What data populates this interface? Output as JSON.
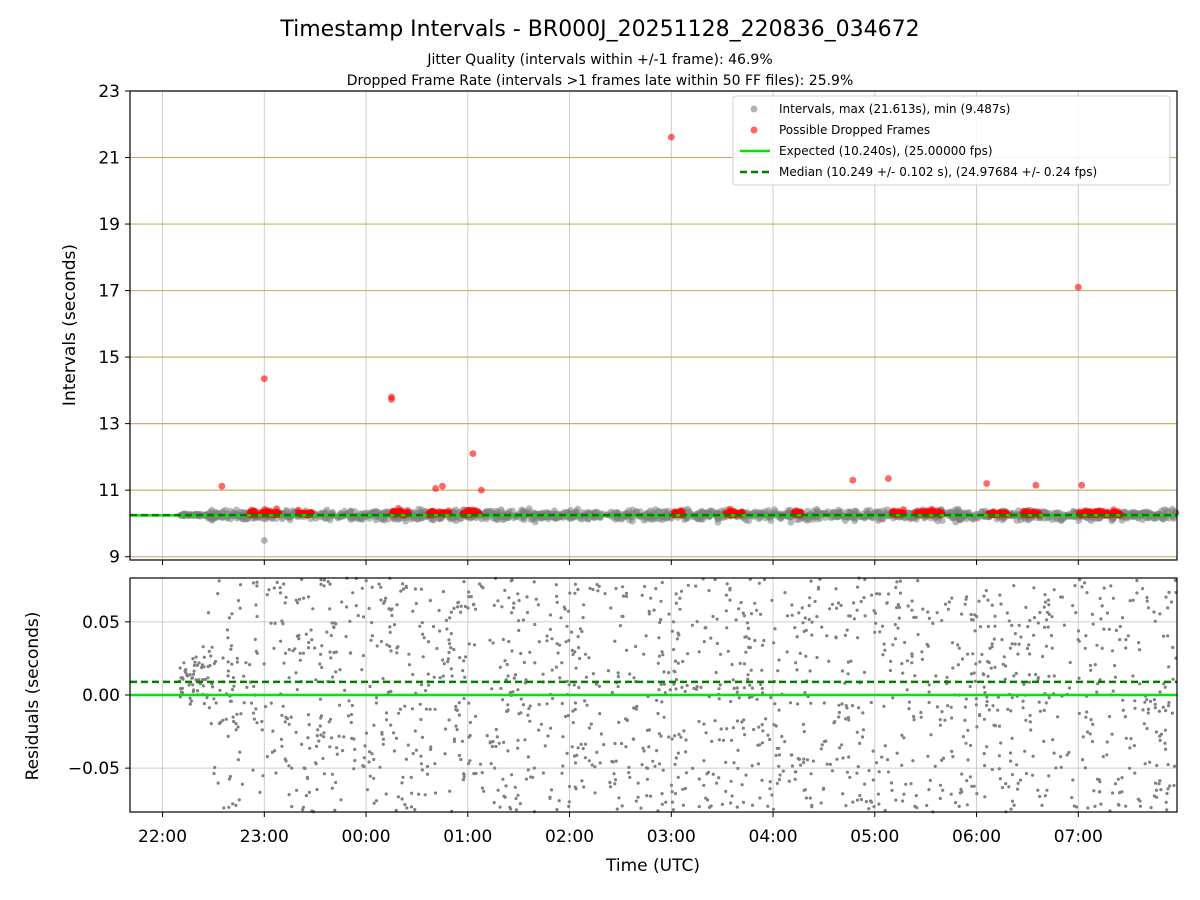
{
  "figure": {
    "title": "Timestamp Intervals - BR000J_20251128_220836_034672",
    "subtitle_line1": "Jitter Quality (intervals within +/-1 frame): 46.9%",
    "subtitle_line2": "Dropped Frame Rate (intervals >1 frames late within 50 FF files): 25.9%"
  },
  "colors": {
    "intervals": "#808080",
    "dropped": "#ff0000",
    "expected": "#00e600",
    "median": "#007f00",
    "hgrid_top": "#c8b070",
    "grid": "#cccccc"
  },
  "chart_data": [
    {
      "type": "scatter",
      "panel": "top",
      "xlabel": "",
      "ylabel": "Intervals (seconds)",
      "ylim": [
        8.9,
        23
      ],
      "yticks": [
        9,
        11,
        13,
        15,
        17,
        19,
        21,
        23
      ],
      "ytick_labels": [
        "9",
        "11",
        "13",
        "15",
        "17",
        "19",
        "21",
        "23"
      ],
      "xlim_hours": [
        21.68,
        31.97
      ],
      "grid": true,
      "legend_position": "top-right",
      "legend": [
        "Intervals, max (21.613s), min (9.487s)",
        "Possible Dropped Frames",
        "Expected (10.240s), (25.00000 fps)",
        "Median (10.249 +/- 0.102 s), (24.97684 +/- 0.24 fps)"
      ],
      "expected_value": 10.24,
      "median_value": 10.249,
      "interval_band": {
        "time_start": "22:10",
        "time_end": "07:58",
        "center": 10.25,
        "spread": 0.25,
        "max": 21.613,
        "min": 9.487
      },
      "series": [
        {
          "name": "Possible Dropped Frames",
          "clusters": [
            {
              "time": "23:00",
              "width_min": 18
            },
            {
              "time": "23:24",
              "width_min": 8
            },
            {
              "time": "00:20",
              "width_min": 10
            },
            {
              "time": "00:43",
              "width_min": 12
            },
            {
              "time": "01:02",
              "width_min": 10
            },
            {
              "time": "03:04",
              "width_min": 6
            },
            {
              "time": "03:37",
              "width_min": 10
            },
            {
              "time": "04:14",
              "width_min": 6
            },
            {
              "time": "05:14",
              "width_min": 8
            },
            {
              "time": "05:32",
              "width_min": 16
            },
            {
              "time": "06:13",
              "width_min": 12
            },
            {
              "time": "06:32",
              "width_min": 10
            },
            {
              "time": "07:13",
              "width_min": 25
            }
          ],
          "outliers": [
            {
              "time": "23:00",
              "y": 14.35
            },
            {
              "time": "00:15",
              "y": 13.8
            },
            {
              "time": "00:15",
              "y": 13.73
            },
            {
              "time": "01:03",
              "y": 12.1
            },
            {
              "time": "03:00",
              "y": 21.613
            },
            {
              "time": "07:00",
              "y": 17.1
            },
            {
              "time": "22:35",
              "y": 11.12
            },
            {
              "time": "00:41",
              "y": 11.05
            },
            {
              "time": "00:45",
              "y": 11.12
            },
            {
              "time": "01:08",
              "y": 11.0
            },
            {
              "time": "04:47",
              "y": 11.3
            },
            {
              "time": "05:08",
              "y": 11.35
            },
            {
              "time": "06:06",
              "y": 11.2
            },
            {
              "time": "06:35",
              "y": 11.15
            },
            {
              "time": "07:02",
              "y": 11.15
            }
          ]
        }
      ]
    },
    {
      "type": "scatter",
      "panel": "bottom",
      "xlabel": "Time (UTC)",
      "ylabel": "Residuals (seconds)",
      "ylim": [
        -0.08,
        0.08
      ],
      "yticks": [
        -0.05,
        0.0,
        0.05
      ],
      "ytick_labels": [
        "−0.05",
        "0.00",
        "0.05"
      ],
      "xticks": [
        "22:00",
        "23:00",
        "00:00",
        "01:00",
        "02:00",
        "03:00",
        "04:00",
        "05:00",
        "06:00",
        "07:00"
      ],
      "grid": true,
      "expected_value": 0.0,
      "median_value": 0.009,
      "residual_band": {
        "time_start": "22:10",
        "time_end": "07:58",
        "min": -0.08,
        "max": 0.08
      }
    }
  ]
}
